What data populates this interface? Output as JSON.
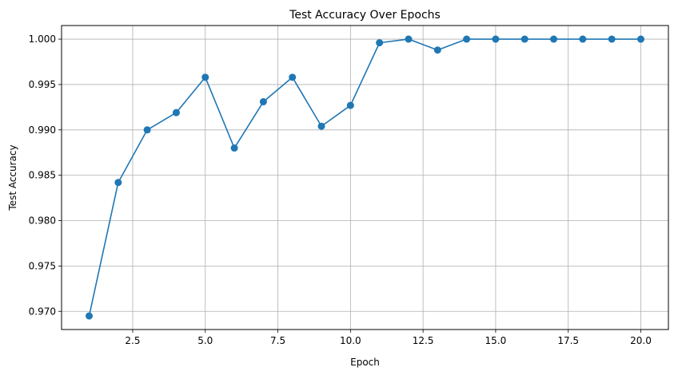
{
  "chart_data": {
    "type": "line",
    "title": "Test Accuracy Over Epochs",
    "xlabel": "Epoch",
    "ylabel": "Test Accuracy",
    "x": [
      1,
      2,
      3,
      4,
      5,
      6,
      7,
      8,
      9,
      10,
      11,
      12,
      13,
      14,
      15,
      16,
      17,
      18,
      19,
      20
    ],
    "series": [
      {
        "values": [
          0.9695,
          0.9842,
          0.99,
          0.9919,
          0.9958,
          0.988,
          0.9931,
          0.9958,
          0.9904,
          0.9927,
          0.9996,
          1.0,
          0.9988,
          1.0,
          1.0,
          1.0,
          1.0,
          1.0,
          1.0,
          1.0
        ],
        "color": "#1f77b4",
        "marker": "circle"
      }
    ],
    "xlim": [
      0.05,
      20.95
    ],
    "ylim": [
      0.968,
      1.0015
    ],
    "x_ticks": [
      2.5,
      5.0,
      7.5,
      10.0,
      12.5,
      15.0,
      17.5,
      20.0
    ],
    "x_tick_labels": [
      "2.5",
      "5.0",
      "7.5",
      "10.0",
      "12.5",
      "15.0",
      "17.5",
      "20.0"
    ],
    "y_ticks": [
      0.97,
      0.975,
      0.98,
      0.985,
      0.99,
      0.995,
      1.0
    ],
    "y_tick_labels": [
      "0.970",
      "0.975",
      "0.980",
      "0.985",
      "0.990",
      "0.995",
      "1.000"
    ],
    "grid": true,
    "legend": "none"
  }
}
